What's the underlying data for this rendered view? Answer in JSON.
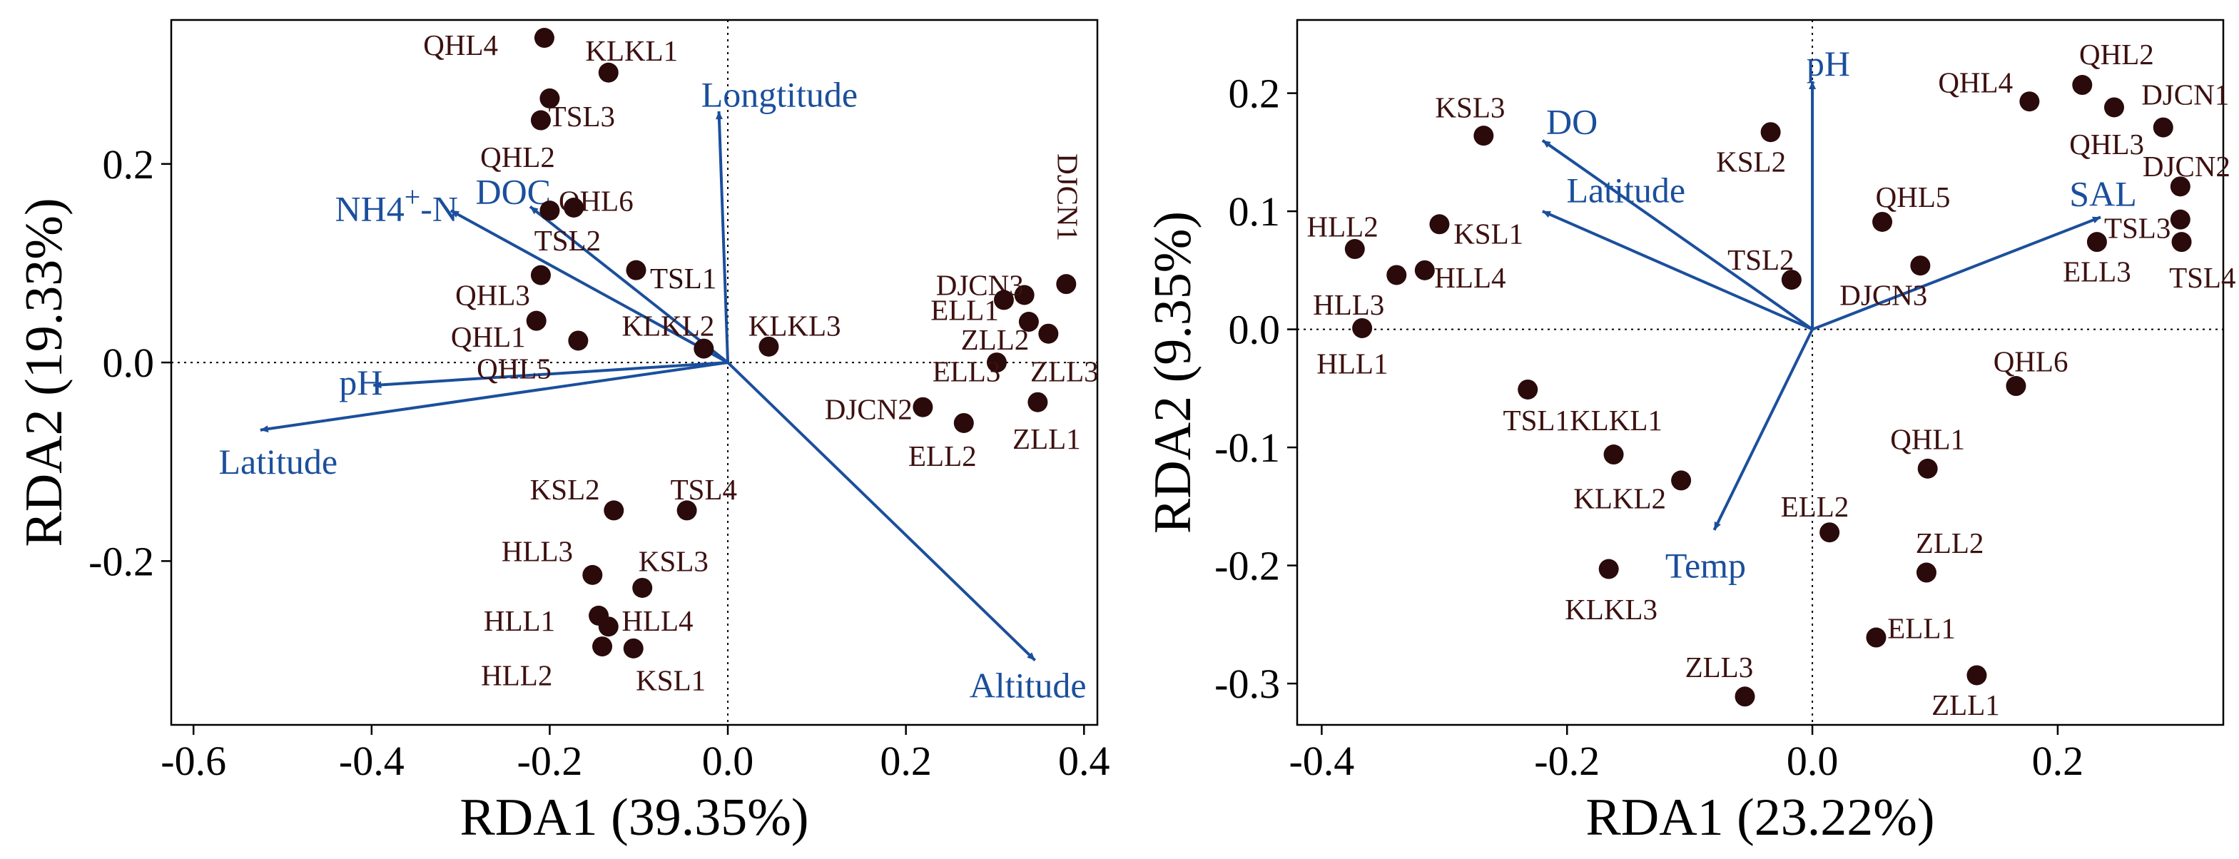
{
  "colors": {
    "point": "#2a0a0a",
    "point_label": "#3d1010",
    "arrow": "#1b4f9c",
    "axis": "#000000"
  },
  "chart_data": [
    {
      "type": "scatter",
      "subtype": "rda-biplot",
      "xlabel": "RDA1 (39.35%)",
      "ylabel": "RDA2 (19.33%)",
      "xlim": [
        -0.625,
        0.415
      ],
      "ylim": [
        -0.365,
        0.345
      ],
      "xticks": [
        {
          "v": -0.6,
          "label": "-0.6"
        },
        {
          "v": -0.4,
          "label": "-0.4"
        },
        {
          "v": -0.2,
          "label": "-0.2"
        },
        {
          "v": 0,
          "label": "0.0"
        },
        {
          "v": 0.2,
          "label": "0.2"
        },
        {
          "v": 0.4,
          "label": "0.4"
        }
      ],
      "yticks": [
        {
          "v": -0.2,
          "label": "-0.2"
        },
        {
          "v": 0,
          "label": "0.0"
        },
        {
          "v": 0.2,
          "label": "0.2"
        }
      ],
      "points": [
        {
          "label": "QHL4",
          "x": -0.206,
          "y": 0.327,
          "lx": -0.3,
          "ly": 0.32
        },
        {
          "label": "KLKL1",
          "x": -0.134,
          "y": 0.292,
          "lx": -0.108,
          "ly": 0.314
        },
        {
          "label": "TSL3",
          "x": -0.2,
          "y": 0.266,
          "lx": -0.164,
          "ly": 0.248
        },
        {
          "label": "QHL2",
          "x": -0.21,
          "y": 0.244,
          "lx": -0.236,
          "ly": 0.207
        },
        {
          "label": "QHL6",
          "x": -0.2,
          "y": 0.153,
          "lx": -0.148,
          "ly": 0.163
        },
        {
          "label": "TSL2",
          "x": -0.173,
          "y": 0.156,
          "lx": -0.18,
          "ly": 0.123
        },
        {
          "label": "TSL1",
          "x": -0.103,
          "y": 0.093,
          "lx": -0.05,
          "ly": 0.085,
          "dark": true
        },
        {
          "label": "QHL3",
          "x": -0.21,
          "y": 0.088,
          "lx": -0.264,
          "ly": 0.068
        },
        {
          "label": "QHL1",
          "x": -0.215,
          "y": 0.042,
          "lx": -0.269,
          "ly": 0.026
        },
        {
          "label": "KLKL2",
          "x": -0.027,
          "y": 0.014,
          "lx": -0.067,
          "ly": 0.037
        },
        {
          "label": "QHL5",
          "x": -0.168,
          "y": 0.022,
          "lx": -0.24,
          "ly": -0.006
        },
        {
          "label": "KLKL3",
          "x": 0.046,
          "y": 0.016,
          "lx": 0.075,
          "ly": 0.037
        },
        {
          "label": "DJCN1",
          "x": 0.38,
          "y": 0.079,
          "rot": 90
        },
        {
          "label": "DJCN3",
          "x": 0.333,
          "y": 0.068,
          "lx": 0.283,
          "ly": 0.078
        },
        {
          "label": "ELL1",
          "x": 0.31,
          "y": 0.063,
          "lx": 0.266,
          "ly": 0.053
        },
        {
          "label": "ZLL2",
          "x": 0.338,
          "y": 0.041,
          "lx": 0.3,
          "ly": 0.023
        },
        {
          "label": "ELL3",
          "x": 0.302,
          "y": 0.0,
          "lx": 0.268,
          "ly": -0.009
        },
        {
          "label": "ZLL3",
          "x": 0.36,
          "y": 0.029,
          "lx": 0.378,
          "ly": -0.009
        },
        {
          "label": "DJCN2",
          "x": 0.219,
          "y": -0.045,
          "lx": 0.158,
          "ly": -0.047
        },
        {
          "label": "ELL2",
          "x": 0.265,
          "y": -0.061,
          "lx": 0.241,
          "ly": -0.094
        },
        {
          "label": "ZLL1",
          "x": 0.348,
          "y": -0.04,
          "lx": 0.358,
          "ly": -0.077
        },
        {
          "label": "KSL2",
          "x": -0.128,
          "y": -0.149,
          "lx": -0.183,
          "ly": -0.128
        },
        {
          "label": "TSL4",
          "x": -0.046,
          "y": -0.149,
          "lx": -0.027,
          "ly": -0.128
        },
        {
          "label": "HLL3",
          "x": -0.152,
          "y": -0.214,
          "lx": -0.214,
          "ly": -0.19
        },
        {
          "label": "KSL3",
          "x": -0.096,
          "y": -0.227,
          "lx": -0.061,
          "ly": -0.2
        },
        {
          "label": "HLL1",
          "x": -0.145,
          "y": -0.255,
          "lx": -0.234,
          "ly": -0.26
        },
        {
          "label": "HLL4",
          "x": -0.134,
          "y": -0.266,
          "lx": -0.079,
          "ly": -0.26
        },
        {
          "label": "HLL2",
          "x": -0.141,
          "y": -0.286,
          "lx": -0.237,
          "ly": -0.315
        },
        {
          "label": "KSL1",
          "x": -0.106,
          "y": -0.288,
          "lx": -0.064,
          "ly": -0.32
        }
      ],
      "arrows": [
        {
          "name": "Longtitude",
          "x": -0.01,
          "y": 0.253,
          "lx": 0.058,
          "ly": 0.27
        },
        {
          "name": "DOC",
          "x": -0.222,
          "y": 0.157,
          "lx": -0.241,
          "ly": 0.172
        },
        {
          "name": "NH4+-N",
          "x": -0.311,
          "y": 0.153,
          "lx": -0.372,
          "ly": 0.155
        },
        {
          "name": "pH",
          "x": -0.398,
          "y": -0.023,
          "lx": -0.412,
          "ly": -0.02
        },
        {
          "name": "Latitude",
          "x": -0.525,
          "y": -0.068,
          "lx": -0.505,
          "ly": -0.1
        },
        {
          "name": "Altitude",
          "x": 0.345,
          "y": -0.3,
          "lx": 0.337,
          "ly": -0.325
        }
      ]
    },
    {
      "type": "scatter",
      "subtype": "rda-biplot",
      "xlabel": "RDA1 (23.22%)",
      "ylabel": "RDA2 (9.35%)",
      "xlim": [
        -0.42,
        0.335
      ],
      "ylim": [
        -0.335,
        0.262
      ],
      "xticks": [
        {
          "v": -0.4,
          "label": "-0.4"
        },
        {
          "v": -0.2,
          "label": "-0.2"
        },
        {
          "v": 0,
          "label": "0.0"
        },
        {
          "v": 0.2,
          "label": "0.2"
        }
      ],
      "yticks": [
        {
          "v": -0.3,
          "label": "-0.3"
        },
        {
          "v": -0.2,
          "label": "-0.2"
        },
        {
          "v": -0.1,
          "label": "-0.1"
        },
        {
          "v": 0,
          "label": "0.0"
        },
        {
          "v": 0.1,
          "label": "0.1"
        },
        {
          "v": 0.2,
          "label": "0.2"
        }
      ],
      "points": [
        {
          "label": "KSL3",
          "x": -0.268,
          "y": 0.164,
          "lx": -0.279,
          "ly": 0.188
        },
        {
          "label": "KSL2",
          "x": -0.034,
          "y": 0.167,
          "lx": -0.05,
          "ly": 0.142
        },
        {
          "label": "QHL4",
          "x": 0.177,
          "y": 0.193,
          "lx": 0.133,
          "ly": 0.209
        },
        {
          "label": "QHL2",
          "x": 0.22,
          "y": 0.207,
          "lx": 0.248,
          "ly": 0.233
        },
        {
          "label": "DJCN1",
          "x": 0.246,
          "y": 0.188,
          "lx": 0.304,
          "ly": 0.199
        },
        {
          "label": "QHL3",
          "x": 0.286,
          "y": 0.171,
          "lx": 0.24,
          "ly": 0.157
        },
        {
          "label": "DJCN2",
          "x": 0.3,
          "y": 0.121,
          "lx": 0.305,
          "ly": 0.138
        },
        {
          "label": "QHL5",
          "x": 0.057,
          "y": 0.091,
          "lx": 0.082,
          "ly": 0.112
        },
        {
          "label": "TSL3",
          "x": 0.3,
          "y": 0.093,
          "lx": 0.265,
          "ly": 0.086
        },
        {
          "label": "ELL3",
          "x": 0.232,
          "y": 0.074,
          "lx": 0.232,
          "ly": 0.049
        },
        {
          "label": "TSL4",
          "x": 0.301,
          "y": 0.074,
          "lx": 0.318,
          "ly": 0.044
        },
        {
          "label": "HLL2",
          "x": -0.373,
          "y": 0.068,
          "lx": -0.383,
          "ly": 0.087
        },
        {
          "label": "KSL1",
          "x": -0.304,
          "y": 0.089,
          "lx": -0.264,
          "ly": 0.081
        },
        {
          "label": "HLL4",
          "x": -0.316,
          "y": 0.05,
          "lx": -0.279,
          "ly": 0.044
        },
        {
          "label": "HLL3",
          "x": -0.339,
          "y": 0.046,
          "lx": -0.378,
          "ly": 0.021
        },
        {
          "label": "HLL1",
          "x": -0.367,
          "y": 0.001,
          "lx": -0.375,
          "ly": -0.029
        },
        {
          "label": "TSL2",
          "x": -0.017,
          "y": 0.042,
          "lx": -0.042,
          "ly": 0.059
        },
        {
          "label": "DJCN3",
          "x": 0.088,
          "y": 0.054,
          "lx": 0.058,
          "ly": 0.029
        },
        {
          "label": "QHL6",
          "x": 0.166,
          "y": -0.048,
          "lx": 0.178,
          "ly": -0.027
        },
        {
          "label": "TSL1",
          "x": -0.232,
          "y": -0.051,
          "lx": -0.225,
          "ly": -0.077
        },
        {
          "label": "KLKL1",
          "x": -0.162,
          "y": -0.106,
          "lx": -0.16,
          "ly": -0.077
        },
        {
          "label": "KLKL2",
          "x": -0.107,
          "y": -0.128,
          "lx": -0.157,
          "ly": -0.143
        },
        {
          "label": "QHL1",
          "x": 0.094,
          "y": -0.118,
          "lx": 0.094,
          "ly": -0.093
        },
        {
          "label": "ELL2",
          "x": 0.014,
          "y": -0.172,
          "lx": 0.002,
          "ly": -0.15
        },
        {
          "label": "ZLL2",
          "x": 0.093,
          "y": -0.206,
          "lx": 0.112,
          "ly": -0.181
        },
        {
          "label": "KLKL3",
          "x": -0.166,
          "y": -0.203,
          "lx": -0.164,
          "ly": -0.237
        },
        {
          "label": "ELL1",
          "x": 0.052,
          "y": -0.261,
          "lx": 0.089,
          "ly": -0.253
        },
        {
          "label": "ZLL3",
          "x": -0.055,
          "y": -0.311,
          "lx": -0.076,
          "ly": -0.286
        },
        {
          "label": "ZLL1",
          "x": 0.134,
          "y": -0.293,
          "lx": 0.125,
          "ly": -0.318
        }
      ],
      "arrows": [
        {
          "name": "pH",
          "x": 0.0,
          "y": 0.21,
          "lx": 0.013,
          "ly": 0.225
        },
        {
          "name": "DO",
          "x": -0.22,
          "y": 0.16,
          "lx": -0.196,
          "ly": 0.176
        },
        {
          "name": "Latitude",
          "x": -0.22,
          "y": 0.1,
          "lx": -0.152,
          "ly": 0.118
        },
        {
          "name": "SAL",
          "x": 0.235,
          "y": 0.095,
          "lx": 0.237,
          "ly": 0.115
        },
        {
          "name": "Temp",
          "x": -0.08,
          "y": -0.17,
          "lx": -0.087,
          "ly": -0.2
        }
      ]
    }
  ]
}
